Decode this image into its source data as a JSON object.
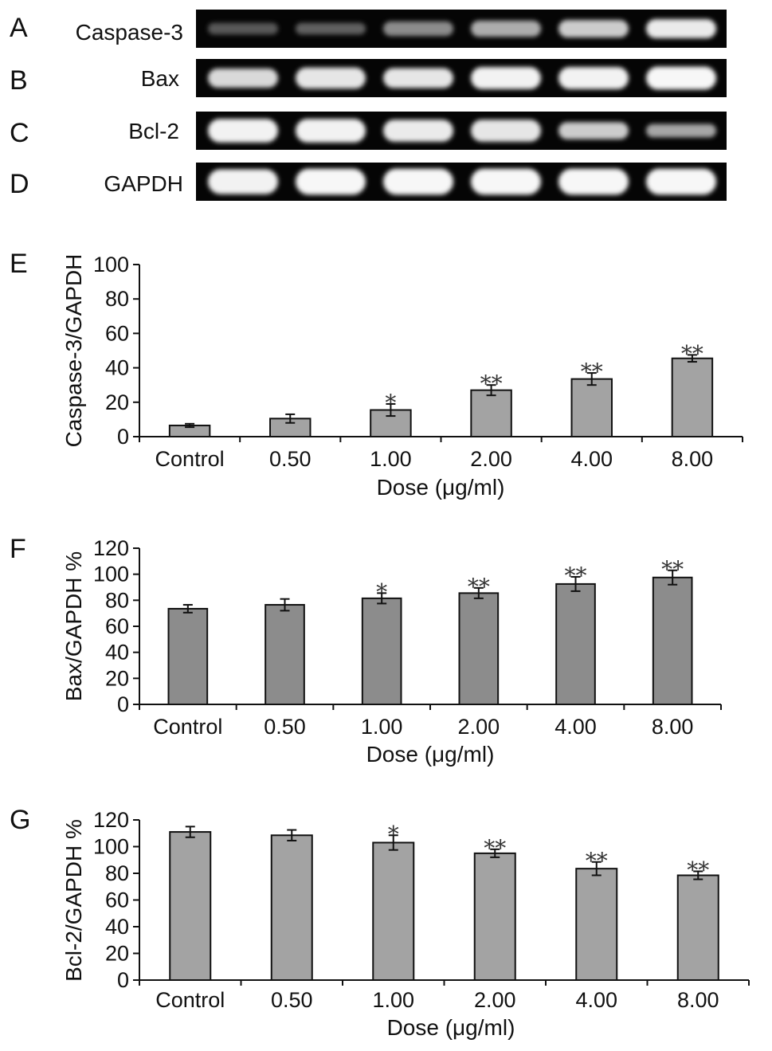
{
  "gels": [
    {
      "letter": "A",
      "label": "Caspase-3",
      "intensities": [
        0.35,
        0.38,
        0.55,
        0.68,
        0.8,
        0.92
      ],
      "thickness": [
        0.3,
        0.3,
        0.38,
        0.42,
        0.46,
        0.5
      ]
    },
    {
      "letter": "B",
      "label": "Bax",
      "intensities": [
        0.85,
        0.9,
        0.9,
        0.95,
        0.95,
        0.97
      ],
      "thickness": [
        0.5,
        0.55,
        0.52,
        0.58,
        0.58,
        0.6
      ]
    },
    {
      "letter": "C",
      "label": "Bcl-2",
      "intensities": [
        0.95,
        0.95,
        0.92,
        0.9,
        0.8,
        0.65
      ],
      "thickness": [
        0.62,
        0.62,
        0.58,
        0.58,
        0.45,
        0.35
      ]
    },
    {
      "letter": "D",
      "label": "GAPDH",
      "intensities": [
        0.95,
        0.97,
        0.97,
        0.97,
        0.97,
        0.97
      ],
      "thickness": [
        0.65,
        0.68,
        0.68,
        0.68,
        0.68,
        0.68
      ]
    }
  ],
  "chart_data": [
    {
      "type": "bar",
      "letter": "E",
      "categories": [
        "Control",
        "0.50",
        "1.00",
        "2.00",
        "4.00",
        "8.00"
      ],
      "values": [
        6.5,
        10.5,
        15.5,
        27,
        33.5,
        45.5
      ],
      "errors": [
        1.0,
        2.5,
        3.5,
        3.0,
        3.5,
        2.0
      ],
      "significance": [
        "",
        "",
        "*",
        "**",
        "**",
        "**"
      ],
      "xlabel": "Dose (μg/ml)",
      "ylabel": "Caspase-3/GAPDH",
      "ylim": [
        0,
        100
      ],
      "yticks": [
        0,
        20,
        40,
        60,
        80,
        100
      ],
      "bar_color": "#a3a3a3",
      "grid": false
    },
    {
      "type": "bar",
      "letter": "F",
      "categories": [
        "Control",
        "0.50",
        "1.00",
        "2.00",
        "4.00",
        "8.00"
      ],
      "values": [
        73.5,
        76.5,
        81.5,
        85.5,
        92.5,
        97.5
      ],
      "errors": [
        3.0,
        4.5,
        4.0,
        4.0,
        5.5,
        5.5
      ],
      "significance": [
        "",
        "",
        "*",
        "**",
        "**",
        "**"
      ],
      "xlabel": "Dose (μg/ml)",
      "ylabel": "Bax/GAPDH %",
      "ylim": [
        0,
        120
      ],
      "yticks": [
        0,
        20,
        40,
        60,
        80,
        100,
        120
      ],
      "bar_color": "#8c8c8c",
      "grid": false
    },
    {
      "type": "bar",
      "letter": "G",
      "categories": [
        "Control",
        "0.50",
        "1.00",
        "2.00",
        "4.00",
        "8.00"
      ],
      "values": [
        111,
        108.5,
        103,
        95,
        83.5,
        78.5
      ],
      "errors": [
        4.0,
        4.0,
        5.5,
        3.0,
        5.0,
        3.0
      ],
      "significance": [
        "",
        "",
        "*",
        "**",
        "**",
        "**"
      ],
      "xlabel": "Dose (μg/ml)",
      "ylabel": "Bcl-2/GAPDH %",
      "ylim": [
        0,
        120
      ],
      "yticks": [
        0,
        20,
        40,
        60,
        80,
        100,
        120
      ],
      "bar_color": "#a3a3a3",
      "grid": false
    }
  ]
}
